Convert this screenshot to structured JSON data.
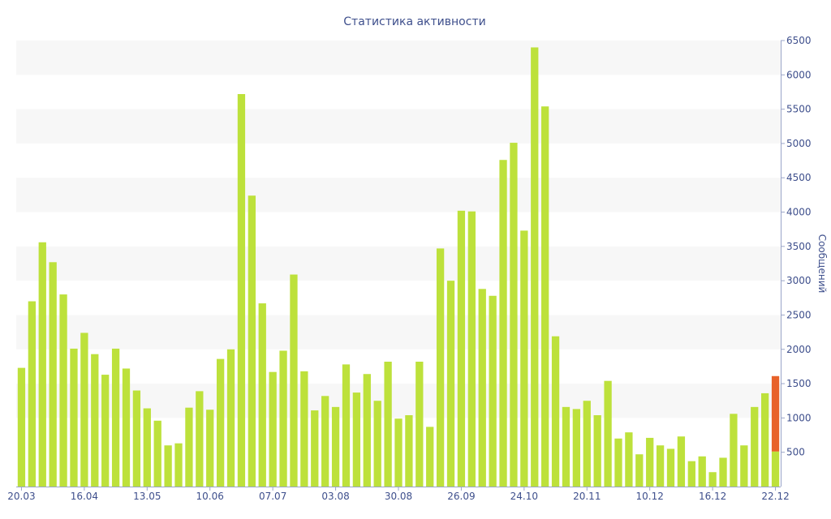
{
  "chart_data": {
    "type": "bar",
    "title": "Статистика активности",
    "ylabel": "Сообщений",
    "xlabel": "",
    "ylim": [
      0,
      6500
    ],
    "yticks": [
      500,
      1000,
      1500,
      2000,
      2500,
      3000,
      3500,
      4000,
      4500,
      5000,
      5500,
      6000,
      6500
    ],
    "xtick_labels": [
      "20.03",
      "16.04",
      "13.05",
      "10.06",
      "07.07",
      "03.08",
      "30.08",
      "26.09",
      "24.10",
      "20.11",
      "10.12",
      "16.12",
      "22.12"
    ],
    "xtick_indices": [
      0,
      6,
      12,
      18,
      24,
      30,
      36,
      42,
      48,
      54,
      60,
      66,
      72
    ],
    "grid": true,
    "legend": "none",
    "colors": {
      "bar": "#bde13b",
      "highlight": "#e8622a",
      "grid_band": "#f7f7f7",
      "axis": "#3e4f8c",
      "baseline": "#9aa5c8"
    },
    "values": [
      1730,
      2700,
      3560,
      3270,
      2800,
      2010,
      2240,
      1930,
      1630,
      2010,
      1720,
      1400,
      1140,
      960,
      600,
      630,
      1150,
      1390,
      1120,
      1860,
      2000,
      5720,
      4240,
      2670,
      1670,
      1980,
      3090,
      1680,
      1110,
      1320,
      1160,
      1780,
      1370,
      1640,
      1250,
      1820,
      990,
      1040,
      1820,
      870,
      3470,
      3000,
      4020,
      4010,
      2880,
      2780,
      4760,
      5010,
      3730,
      6400,
      5540,
      2190,
      1160,
      1130,
      1250,
      1040,
      1540,
      700,
      790,
      470,
      710,
      600,
      550,
      730,
      370,
      440,
      210,
      420,
      1060,
      600,
      1160,
      1360,
      510
    ],
    "last_bar_highlight_total": 1610
  }
}
